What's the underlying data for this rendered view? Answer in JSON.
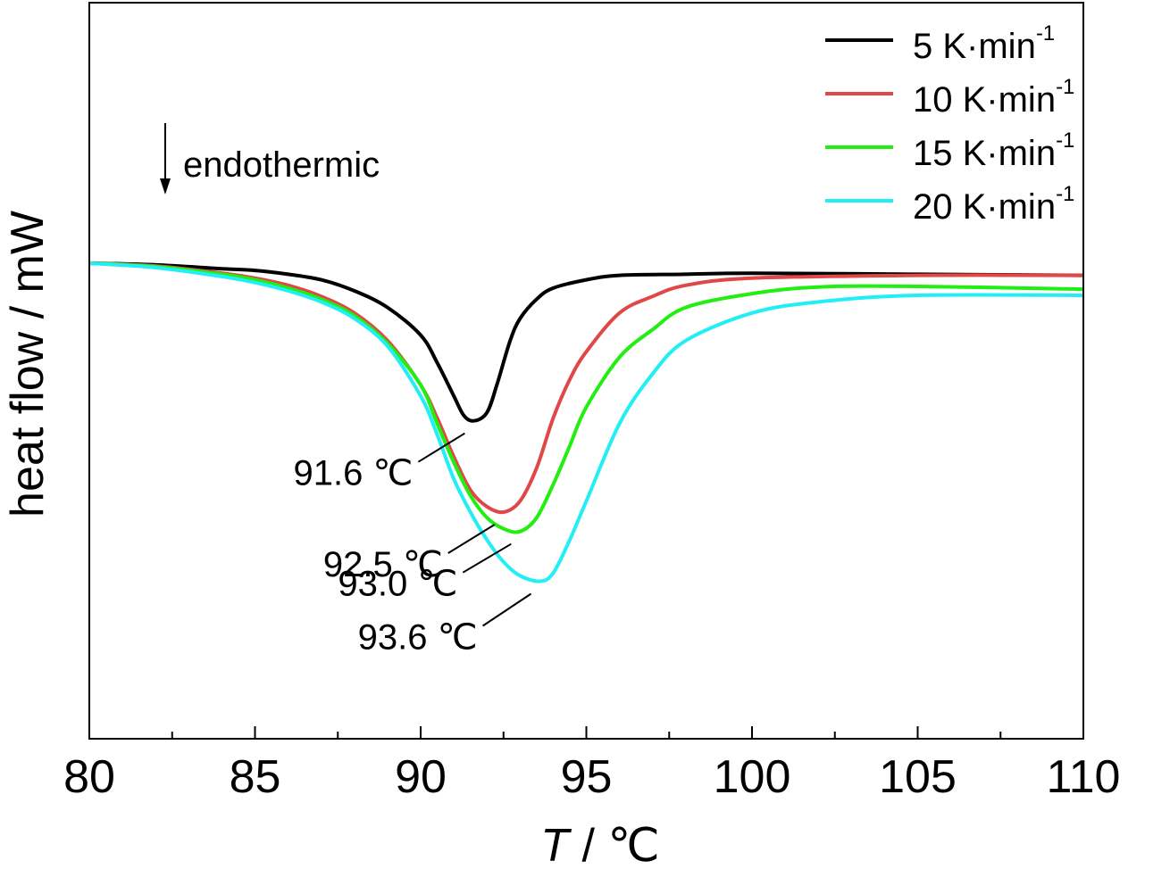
{
  "chart_data": {
    "type": "line",
    "xlabel": "T / ℃",
    "xlabel_italic": "T",
    "xlabel_rest": " / ℃",
    "ylabel": "heat flow / mW",
    "xlim": [
      80,
      110
    ],
    "ylim": [
      -1.0,
      0.15
    ],
    "x_major_ticks": [
      80,
      85,
      90,
      95,
      100,
      105,
      110
    ],
    "x_minor_ticks": [
      82.5,
      87.5,
      92.5,
      97.5,
      102.5,
      107.5
    ],
    "y_ticks_labeled": false,
    "grid": false,
    "legend_position": "top-right",
    "endothermic_label": "endothermic",
    "series": [
      {
        "name": "5 K·min",
        "legend_main": "5 K·min",
        "legend_sup": "-1",
        "color": "#000000",
        "points": [
          [
            80,
            0
          ],
          [
            82,
            -0.003
          ],
          [
            84,
            -0.01
          ],
          [
            85,
            -0.013
          ],
          [
            86,
            -0.02
          ],
          [
            87,
            -0.03
          ],
          [
            88,
            -0.05
          ],
          [
            89,
            -0.08
          ],
          [
            90,
            -0.13
          ],
          [
            90.5,
            -0.18
          ],
          [
            91,
            -0.24
          ],
          [
            91.3,
            -0.275
          ],
          [
            91.6,
            -0.285
          ],
          [
            92,
            -0.27
          ],
          [
            92.3,
            -0.22
          ],
          [
            92.7,
            -0.14
          ],
          [
            93,
            -0.1
          ],
          [
            93.5,
            -0.065
          ],
          [
            94,
            -0.045
          ],
          [
            95,
            -0.03
          ],
          [
            96,
            -0.022
          ],
          [
            98,
            -0.02
          ],
          [
            100,
            -0.018
          ],
          [
            105,
            -0.02
          ],
          [
            110,
            -0.022
          ]
        ]
      },
      {
        "name": "10 K·min",
        "legend_main": "10 K·min",
        "legend_sup": "-1",
        "color": "#e04848",
        "points": [
          [
            80,
            0
          ],
          [
            82,
            -0.005
          ],
          [
            84,
            -0.018
          ],
          [
            85,
            -0.027
          ],
          [
            86,
            -0.04
          ],
          [
            87,
            -0.06
          ],
          [
            88,
            -0.09
          ],
          [
            89,
            -0.14
          ],
          [
            90,
            -0.22
          ],
          [
            90.5,
            -0.28
          ],
          [
            91,
            -0.35
          ],
          [
            91.5,
            -0.41
          ],
          [
            92,
            -0.44
          ],
          [
            92.5,
            -0.45
          ],
          [
            93,
            -0.43
          ],
          [
            93.5,
            -0.37
          ],
          [
            94,
            -0.28
          ],
          [
            94.5,
            -0.21
          ],
          [
            95,
            -0.16
          ],
          [
            96,
            -0.09
          ],
          [
            97,
            -0.06
          ],
          [
            98,
            -0.04
          ],
          [
            100,
            -0.027
          ],
          [
            105,
            -0.022
          ],
          [
            110,
            -0.022
          ]
        ]
      },
      {
        "name": "15 K·min",
        "legend_main": "15 K·min",
        "legend_sup": "-1",
        "color": "#22ee11",
        "points": [
          [
            80,
            0
          ],
          [
            82,
            -0.006
          ],
          [
            84,
            -0.02
          ],
          [
            85,
            -0.03
          ],
          [
            86,
            -0.045
          ],
          [
            87,
            -0.065
          ],
          [
            88,
            -0.095
          ],
          [
            89,
            -0.145
          ],
          [
            90,
            -0.22
          ],
          [
            90.5,
            -0.29
          ],
          [
            91,
            -0.36
          ],
          [
            91.5,
            -0.42
          ],
          [
            92,
            -0.46
          ],
          [
            92.5,
            -0.48
          ],
          [
            93,
            -0.485
          ],
          [
            93.5,
            -0.46
          ],
          [
            94,
            -0.4
          ],
          [
            94.5,
            -0.33
          ],
          [
            95,
            -0.26
          ],
          [
            96,
            -0.17
          ],
          [
            97,
            -0.12
          ],
          [
            98,
            -0.08
          ],
          [
            100,
            -0.055
          ],
          [
            102,
            -0.043
          ],
          [
            105,
            -0.042
          ],
          [
            110,
            -0.047
          ]
        ]
      },
      {
        "name": "20 K·min",
        "legend_main": "20 K·min",
        "legend_sup": "-1",
        "color": "#22eef6",
        "points": [
          [
            80,
            0
          ],
          [
            82,
            -0.008
          ],
          [
            84,
            -0.024
          ],
          [
            85,
            -0.035
          ],
          [
            86,
            -0.05
          ],
          [
            87,
            -0.07
          ],
          [
            88,
            -0.1
          ],
          [
            89,
            -0.15
          ],
          [
            90,
            -0.24
          ],
          [
            90.5,
            -0.31
          ],
          [
            91,
            -0.39
          ],
          [
            91.5,
            -0.45
          ],
          [
            92,
            -0.5
          ],
          [
            92.5,
            -0.54
          ],
          [
            93,
            -0.565
          ],
          [
            93.6,
            -0.575
          ],
          [
            94,
            -0.56
          ],
          [
            94.5,
            -0.5
          ],
          [
            95,
            -0.43
          ],
          [
            96,
            -0.29
          ],
          [
            97,
            -0.2
          ],
          [
            98,
            -0.14
          ],
          [
            100,
            -0.09
          ],
          [
            102,
            -0.07
          ],
          [
            105,
            -0.058
          ],
          [
            110,
            -0.058
          ]
        ]
      }
    ],
    "annotations": [
      {
        "text": "91.6 ℃",
        "series": 0,
        "peak_x": 91.6,
        "peak_y": -0.285
      },
      {
        "text": "92.5 ℃",
        "series": 1,
        "peak_x": 92.5,
        "peak_y": -0.45
      },
      {
        "text": "93.0 ℃",
        "series": 2,
        "peak_x": 93.0,
        "peak_y": -0.485
      },
      {
        "text": "93.6 ℃",
        "series": 3,
        "peak_x": 93.6,
        "peak_y": -0.575
      }
    ]
  }
}
